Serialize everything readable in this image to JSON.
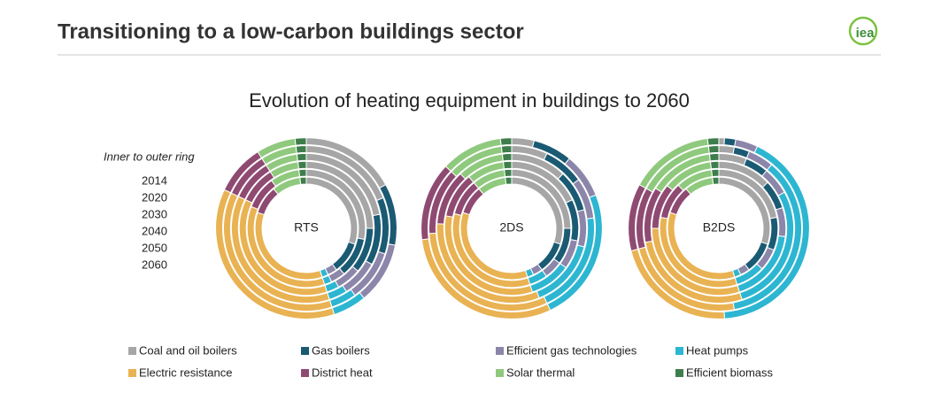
{
  "header": {
    "title": "Transitioning to a low-carbon buildings sector",
    "logo": "iea"
  },
  "chart_data": {
    "type": "donut",
    "title": "Evolution of heating equipment in buildings to 2060",
    "ring_caption": "Inner to outer ring",
    "rings": [
      "2014",
      "2020",
      "2030",
      "2040",
      "2050",
      "2060"
    ],
    "categories": [
      "Coal and oil boilers",
      "Gas boilers",
      "Efficient gas technologies",
      "Heat  pumps",
      "Electric resistance",
      "District heat",
      "Solar thermal",
      "Efficient biomass"
    ],
    "colors": [
      "#a6a6a6",
      "#1b5a73",
      "#8c86aa",
      "#2db6d1",
      "#e9b252",
      "#8f4a72",
      "#8fc97d",
      "#3e7e4c"
    ],
    "panels": [
      {
        "label": "RTS",
        "values": [
          [
            30,
            10,
            3,
            2,
            35,
            9,
            9,
            2
          ],
          [
            28,
            11,
            4,
            2,
            36,
            9,
            8,
            2
          ],
          [
            25,
            11,
            6,
            3,
            37,
            9,
            7,
            2
          ],
          [
            22,
            11,
            8,
            4,
            37,
            9,
            7,
            2
          ],
          [
            19,
            11,
            10,
            5,
            37,
            9,
            7,
            2
          ],
          [
            17,
            11,
            11,
            6,
            37,
            9,
            7,
            2
          ]
        ]
      },
      {
        "label": "2DS",
        "values": [
          [
            30,
            10,
            3,
            2,
            35,
            9,
            9,
            2
          ],
          [
            25,
            10,
            5,
            5,
            34,
            10,
            9,
            2
          ],
          [
            18,
            10,
            7,
            10,
            33,
            11,
            9,
            2
          ],
          [
            12,
            9,
            8,
            15,
            32,
            12,
            10,
            2
          ],
          [
            7,
            8,
            8,
            20,
            31,
            13,
            11,
            2
          ],
          [
            4,
            7,
            8,
            24,
            30,
            14,
            11,
            2
          ]
        ]
      },
      {
        "label": "B2DS",
        "values": [
          [
            30,
            10,
            3,
            2,
            35,
            9,
            9,
            2
          ],
          [
            22,
            9,
            6,
            8,
            33,
            10,
            10,
            2
          ],
          [
            13,
            7,
            7,
            18,
            30,
            11,
            12,
            2
          ],
          [
            6,
            5,
            6,
            28,
            27,
            12,
            14,
            2
          ],
          [
            3,
            3,
            5,
            36,
            24,
            12,
            15,
            2
          ],
          [
            1,
            2,
            4,
            42,
            22,
            12,
            15,
            2
          ]
        ]
      }
    ]
  }
}
